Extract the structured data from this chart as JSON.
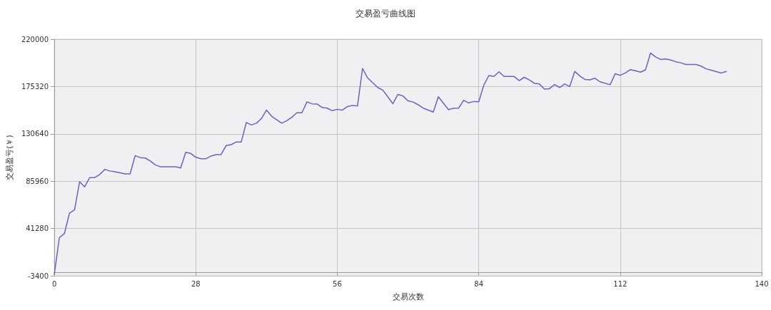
{
  "chart_data": {
    "type": "line",
    "title": "交易盈亏曲线图",
    "xlabel": "交易次数",
    "ylabel": "交易盈亏(￥)",
    "x": [
      0,
      1,
      2,
      3,
      4,
      5,
      6,
      7,
      8,
      9,
      10,
      11,
      12,
      14,
      15,
      16,
      17,
      18,
      19,
      20,
      21,
      24,
      25,
      26,
      27,
      28,
      29,
      30,
      31,
      32,
      33,
      34,
      35,
      36,
      37,
      38,
      39,
      40,
      41,
      42,
      43,
      45,
      46,
      47,
      48,
      49,
      50,
      51,
      52,
      53,
      54,
      55,
      56,
      57,
      58,
      59,
      60,
      61,
      62,
      64,
      65,
      66,
      67,
      68,
      69,
      70,
      71,
      72,
      73,
      75,
      76,
      78,
      79,
      80,
      81,
      82,
      83,
      84,
      85,
      86,
      87,
      88,
      89,
      91,
      92,
      93,
      94,
      95,
      96,
      97,
      98,
      99,
      100,
      101,
      102,
      103,
      104,
      105,
      106,
      107,
      108,
      110,
      111,
      112,
      113,
      114,
      115,
      116,
      117,
      118,
      119,
      120,
      121,
      122,
      123,
      124,
      125,
      127,
      128,
      129,
      130,
      131,
      132,
      133
    ],
    "series": [
      {
        "color": "#6a62c0",
        "values": [
          -2000,
          32600,
          36500,
          55700,
          58700,
          85400,
          80600,
          89300,
          89300,
          92300,
          97100,
          95600,
          94800,
          92800,
          92800,
          110100,
          108200,
          107800,
          105000,
          101300,
          99500,
          99500,
          98400,
          113200,
          112100,
          108600,
          107100,
          107100,
          109700,
          111000,
          111000,
          119500,
          120400,
          123000,
          123000,
          141400,
          139000,
          140700,
          145100,
          153100,
          147300,
          140700,
          143000,
          146200,
          150500,
          150500,
          160900,
          159000,
          158800,
          155500,
          154900,
          152500,
          153800,
          153100,
          156400,
          157500,
          157000,
          192400,
          183500,
          174400,
          172000,
          165700,
          159000,
          167900,
          166400,
          161800,
          160700,
          158100,
          154900,
          151200,
          165700,
          153600,
          154700,
          154900,
          162200,
          159900,
          161200,
          160900,
          176600,
          185700,
          184800,
          189200,
          184800,
          184800,
          180900,
          184000,
          181600,
          178300,
          177700,
          172900,
          173300,
          177200,
          174400,
          177700,
          175300,
          189600,
          185300,
          182000,
          181600,
          183100,
          179800,
          177000,
          187400,
          185900,
          188100,
          191300,
          190200,
          188900,
          191100,
          207000,
          203300,
          200900,
          201300,
          200300,
          198700,
          197700,
          196100,
          196100,
          194600,
          192000,
          190700,
          189400,
          188100,
          189600
        ]
      }
    ],
    "xlim": [
      0,
      140
    ],
    "xticks": [
      0,
      28,
      56,
      84,
      112,
      140
    ],
    "ylim": [
      -3400,
      220000
    ],
    "yticks": [
      -3400,
      41280,
      85960,
      130640,
      175320,
      220000
    ],
    "grid": true
  }
}
